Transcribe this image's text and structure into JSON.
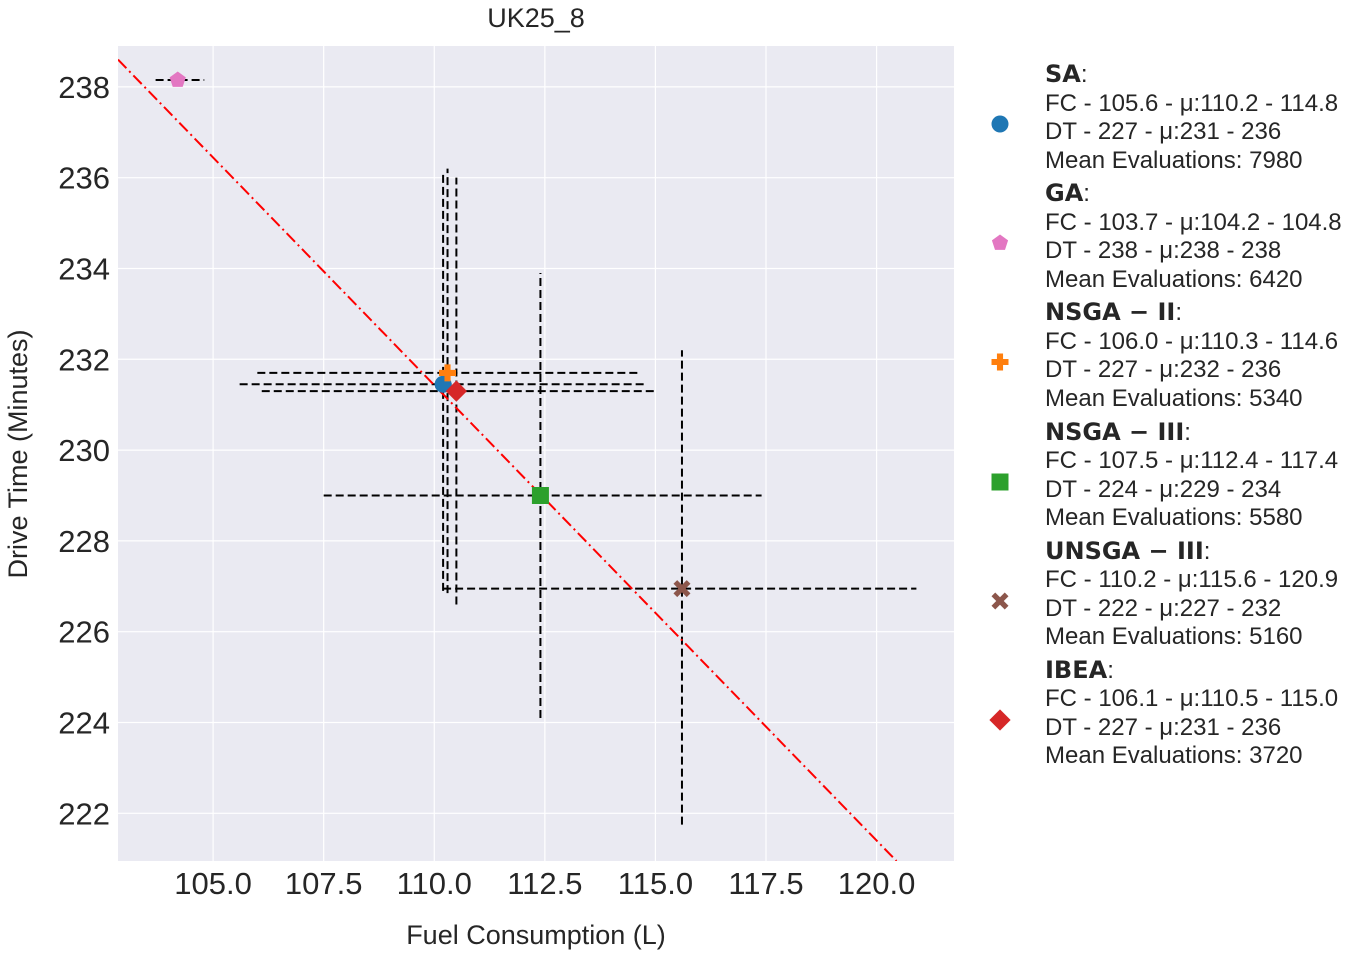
{
  "chart_data": {
    "type": "scatter",
    "title": "UK25_8",
    "xlabel": "Fuel Consumption (L)",
    "ylabel": "Drive Time (Minutes)",
    "xlim": [
      102.85,
      121.75
    ],
    "ylim": [
      220.95,
      238.9
    ],
    "xticks": [
      105.0,
      107.5,
      110.0,
      112.5,
      115.0,
      117.5,
      120.0
    ],
    "xtick_labels": [
      "105.0",
      "107.5",
      "110.0",
      "112.5",
      "115.0",
      "117.5",
      "120.0"
    ],
    "yticks": [
      222,
      224,
      226,
      228,
      230,
      232,
      234,
      236,
      238
    ],
    "ytick_labels": [
      "222",
      "224",
      "226",
      "228",
      "230",
      "232",
      "234",
      "236",
      "238"
    ],
    "grid": true,
    "legend_position": "right-outside",
    "trend_line": {
      "color": "#ff0000",
      "style": "dash-dot",
      "x": [
        102.85,
        120.45
      ],
      "y": [
        238.6,
        220.95
      ]
    },
    "series": [
      {
        "name": "SA",
        "marker": "circle",
        "color": "#1f77b4",
        "x": 110.2,
        "y": 231.45,
        "fc_range": [
          105.6,
          114.8
        ],
        "dt_range": [
          226.9,
          236.1
        ],
        "legend_lines": [
          "FC - 105.6 - μ:110.2 - 114.8",
          "DT - 227 - μ:231 - 236",
          "Mean Evaluations: 7980"
        ]
      },
      {
        "name": "GA",
        "marker": "pentagon",
        "color": "#e377c2",
        "x": 104.2,
        "y": 238.15,
        "fc_range": [
          103.7,
          104.8
        ],
        "dt_range": [
          238.15,
          238.15
        ],
        "legend_lines": [
          "FC - 103.7 - μ:104.2 - 104.8",
          "DT - 238 - μ:238 - 238",
          "Mean Evaluations: 6420"
        ]
      },
      {
        "name": "NSGA − II",
        "marker": "plus",
        "color": "#ff7f0e",
        "x": 110.3,
        "y": 231.7,
        "fc_range": [
          106.0,
          114.6
        ],
        "dt_range": [
          226.85,
          236.2
        ],
        "legend_lines": [
          "FC - 106.0 - μ:110.3 - 114.6",
          "DT - 227 - μ:232 - 236",
          "Mean Evaluations: 5340"
        ]
      },
      {
        "name": "NSGA − III",
        "marker": "square",
        "color": "#2ca02c",
        "x": 112.4,
        "y": 229.0,
        "fc_range": [
          107.5,
          117.4
        ],
        "dt_range": [
          224.1,
          233.9
        ],
        "legend_lines": [
          "FC - 107.5 - μ:112.4 - 117.4",
          "DT - 224 - μ:229 - 234",
          "Mean Evaluations: 5580"
        ]
      },
      {
        "name": "UNSGA − III",
        "marker": "x",
        "color": "#8c564b",
        "x": 115.6,
        "y": 226.95,
        "fc_range": [
          110.2,
          120.9
        ],
        "dt_range": [
          221.75,
          232.2
        ],
        "legend_lines": [
          "FC - 110.2 - μ:115.6 - 120.9",
          "DT - 222 - μ:227 - 232",
          "Mean Evaluations: 5160"
        ]
      },
      {
        "name": "IBEA",
        "marker": "diamond",
        "color": "#d62728",
        "x": 110.5,
        "y": 231.3,
        "fc_range": [
          106.1,
          115.0
        ],
        "dt_range": [
          226.6,
          236.0
        ],
        "legend_lines": [
          "FC - 106.1 - μ:110.5 - 115.0",
          "DT - 227 - μ:231 - 236",
          "Mean Evaluations: 3720"
        ]
      }
    ]
  }
}
